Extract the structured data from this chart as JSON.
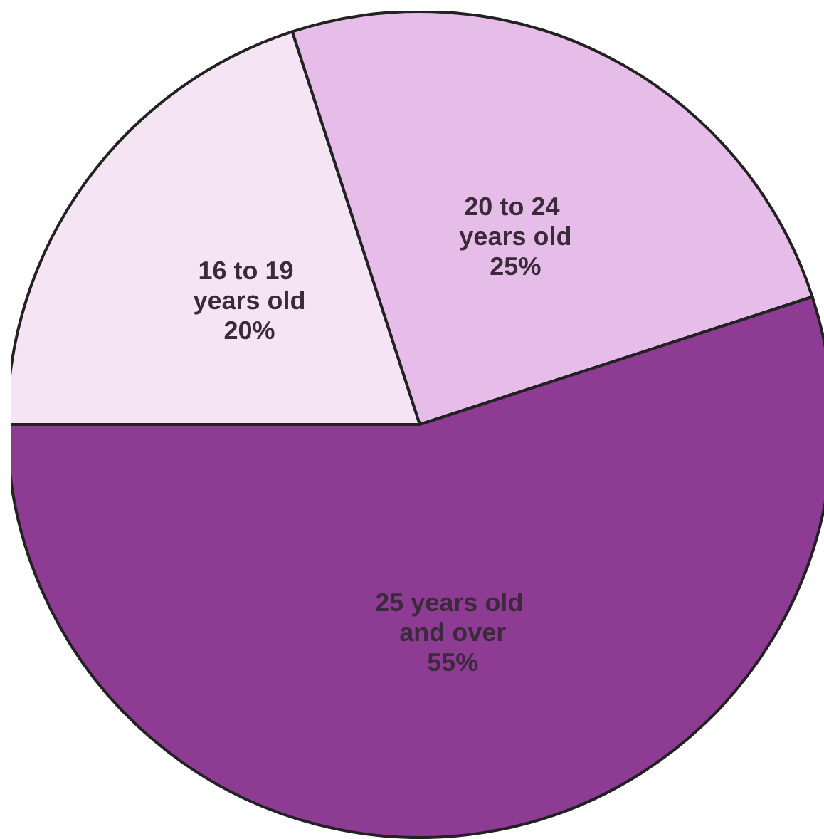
{
  "chart_data": {
    "type": "pie",
    "categories": [
      "16 to 19 years old",
      "20 to 24 years old",
      "25 years old and over"
    ],
    "values": [
      20,
      25,
      55
    ],
    "colors": [
      "#f4e4f4",
      "#e6bde8",
      "#8d3b93"
    ],
    "value_labels": [
      "20%",
      "25%",
      "55%"
    ],
    "legend": false
  }
}
